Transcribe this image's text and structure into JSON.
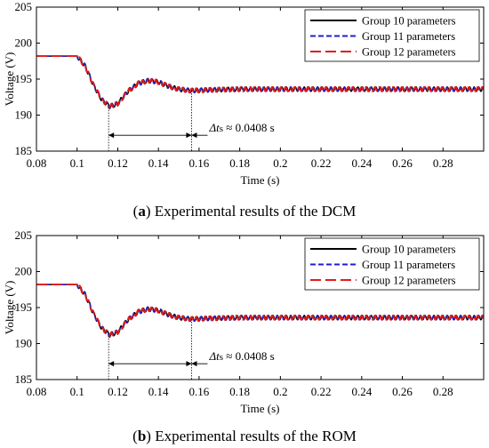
{
  "colors": {
    "group10": "#000000",
    "group11": "#1f1fd8",
    "group12": "#e31a1c",
    "axis": "#000000"
  },
  "chart_data": [
    {
      "type": "line",
      "caption_letter": "a",
      "caption_text": " Experimental results of the DCM",
      "xlabel": "Time (s)",
      "ylabel": "Voltage (V)",
      "xlim": [
        0.08,
        0.3
      ],
      "ylim": [
        185,
        205
      ],
      "xticks": [
        "0.08",
        "0.1",
        "0.12",
        "0.14",
        "0.16",
        "0.18",
        "0.2",
        "0.22",
        "0.24",
        "0.26",
        "0.28"
      ],
      "yticks": [
        "185",
        "190",
        "195",
        "200",
        "205"
      ],
      "grid": false,
      "legend_position": "top-right",
      "annotation": {
        "prefix": "Δ",
        "var": "t",
        "sub": "s",
        "rest": " ≈ 0.0408 s",
        "t_start": 0.1155,
        "t_end": 0.1563,
        "y": 187.2
      },
      "series": [
        {
          "name": "Group 10 parameters",
          "color": "#000000",
          "dash": "none",
          "x": [
            0.08,
            0.1,
            0.104,
            0.108,
            0.112,
            0.116,
            0.12,
            0.125,
            0.13,
            0.135,
            0.14,
            0.145,
            0.15,
            0.156,
            0.165,
            0.18,
            0.2,
            0.3
          ],
          "y": [
            198.2,
            198.2,
            196.8,
            194.2,
            192.2,
            191.2,
            191.6,
            193.3,
            194.4,
            194.8,
            194.6,
            194.0,
            193.6,
            193.4,
            193.5,
            193.6,
            193.6,
            193.6
          ]
        },
        {
          "name": "Group 11 parameters",
          "color": "#1f1fd8",
          "dash": "6,3",
          "x": [
            0.08,
            0.1,
            0.104,
            0.108,
            0.112,
            0.116,
            0.12,
            0.125,
            0.13,
            0.135,
            0.14,
            0.145,
            0.15,
            0.156,
            0.165,
            0.18,
            0.2,
            0.3
          ],
          "y": [
            198.2,
            198.2,
            196.8,
            194.2,
            192.2,
            191.2,
            191.6,
            193.3,
            194.4,
            194.8,
            194.6,
            194.0,
            193.6,
            193.4,
            193.5,
            193.6,
            193.6,
            193.6
          ]
        },
        {
          "name": "Group 12 parameters",
          "color": "#e31a1c",
          "dash": "12,5",
          "x": [
            0.08,
            0.1,
            0.104,
            0.108,
            0.112,
            0.116,
            0.12,
            0.125,
            0.13,
            0.135,
            0.14,
            0.145,
            0.15,
            0.156,
            0.165,
            0.18,
            0.2,
            0.3
          ],
          "y": [
            198.2,
            198.2,
            196.8,
            194.2,
            192.2,
            191.2,
            191.6,
            193.3,
            194.4,
            194.8,
            194.6,
            194.0,
            193.6,
            193.4,
            193.5,
            193.6,
            193.6,
            193.6
          ]
        }
      ]
    },
    {
      "type": "line",
      "caption_letter": "b",
      "caption_text": " Experimental results of the ROM",
      "xlabel": "Time (s)",
      "ylabel": "Voltage (V)",
      "xlim": [
        0.08,
        0.3
      ],
      "ylim": [
        185,
        205
      ],
      "xticks": [
        "0.08",
        "0.1",
        "0.12",
        "0.14",
        "0.16",
        "0.18",
        "0.2",
        "0.22",
        "0.24",
        "0.26",
        "0.28"
      ],
      "yticks": [
        "185",
        "190",
        "195",
        "200",
        "205"
      ],
      "grid": false,
      "legend_position": "top-right",
      "annotation": {
        "prefix": "Δ",
        "var": "t",
        "sub": "s",
        "rest": " ≈ 0.0408 s",
        "t_start": 0.1155,
        "t_end": 0.1563,
        "y": 187.2
      },
      "series": [
        {
          "name": "Group 10 parameters",
          "color": "#000000",
          "dash": "none",
          "x": [
            0.08,
            0.1,
            0.104,
            0.108,
            0.112,
            0.116,
            0.12,
            0.125,
            0.13,
            0.135,
            0.14,
            0.145,
            0.15,
            0.156,
            0.165,
            0.18,
            0.2,
            0.3
          ],
          "y": [
            198.2,
            198.2,
            196.8,
            194.2,
            192.2,
            191.2,
            191.6,
            193.3,
            194.4,
            194.8,
            194.6,
            194.0,
            193.6,
            193.4,
            193.5,
            193.6,
            193.6,
            193.6
          ]
        },
        {
          "name": "Group 11 parameters",
          "color": "#1f1fd8",
          "dash": "6,3",
          "x": [
            0.08,
            0.1,
            0.104,
            0.108,
            0.112,
            0.116,
            0.12,
            0.125,
            0.13,
            0.135,
            0.14,
            0.145,
            0.15,
            0.156,
            0.165,
            0.18,
            0.2,
            0.3
          ],
          "y": [
            198.2,
            198.2,
            196.8,
            194.2,
            192.2,
            191.2,
            191.6,
            193.3,
            194.4,
            194.8,
            194.6,
            194.0,
            193.6,
            193.4,
            193.5,
            193.6,
            193.6,
            193.6
          ]
        },
        {
          "name": "Group 12 parameters",
          "color": "#e31a1c",
          "dash": "12,5",
          "x": [
            0.08,
            0.1,
            0.104,
            0.108,
            0.112,
            0.116,
            0.12,
            0.125,
            0.13,
            0.135,
            0.14,
            0.145,
            0.15,
            0.156,
            0.165,
            0.18,
            0.2,
            0.3
          ],
          "y": [
            198.2,
            198.2,
            196.8,
            194.2,
            192.2,
            191.2,
            191.6,
            193.3,
            194.4,
            194.8,
            194.6,
            194.0,
            193.6,
            193.4,
            193.5,
            193.6,
            193.6,
            193.6
          ]
        }
      ]
    }
  ]
}
